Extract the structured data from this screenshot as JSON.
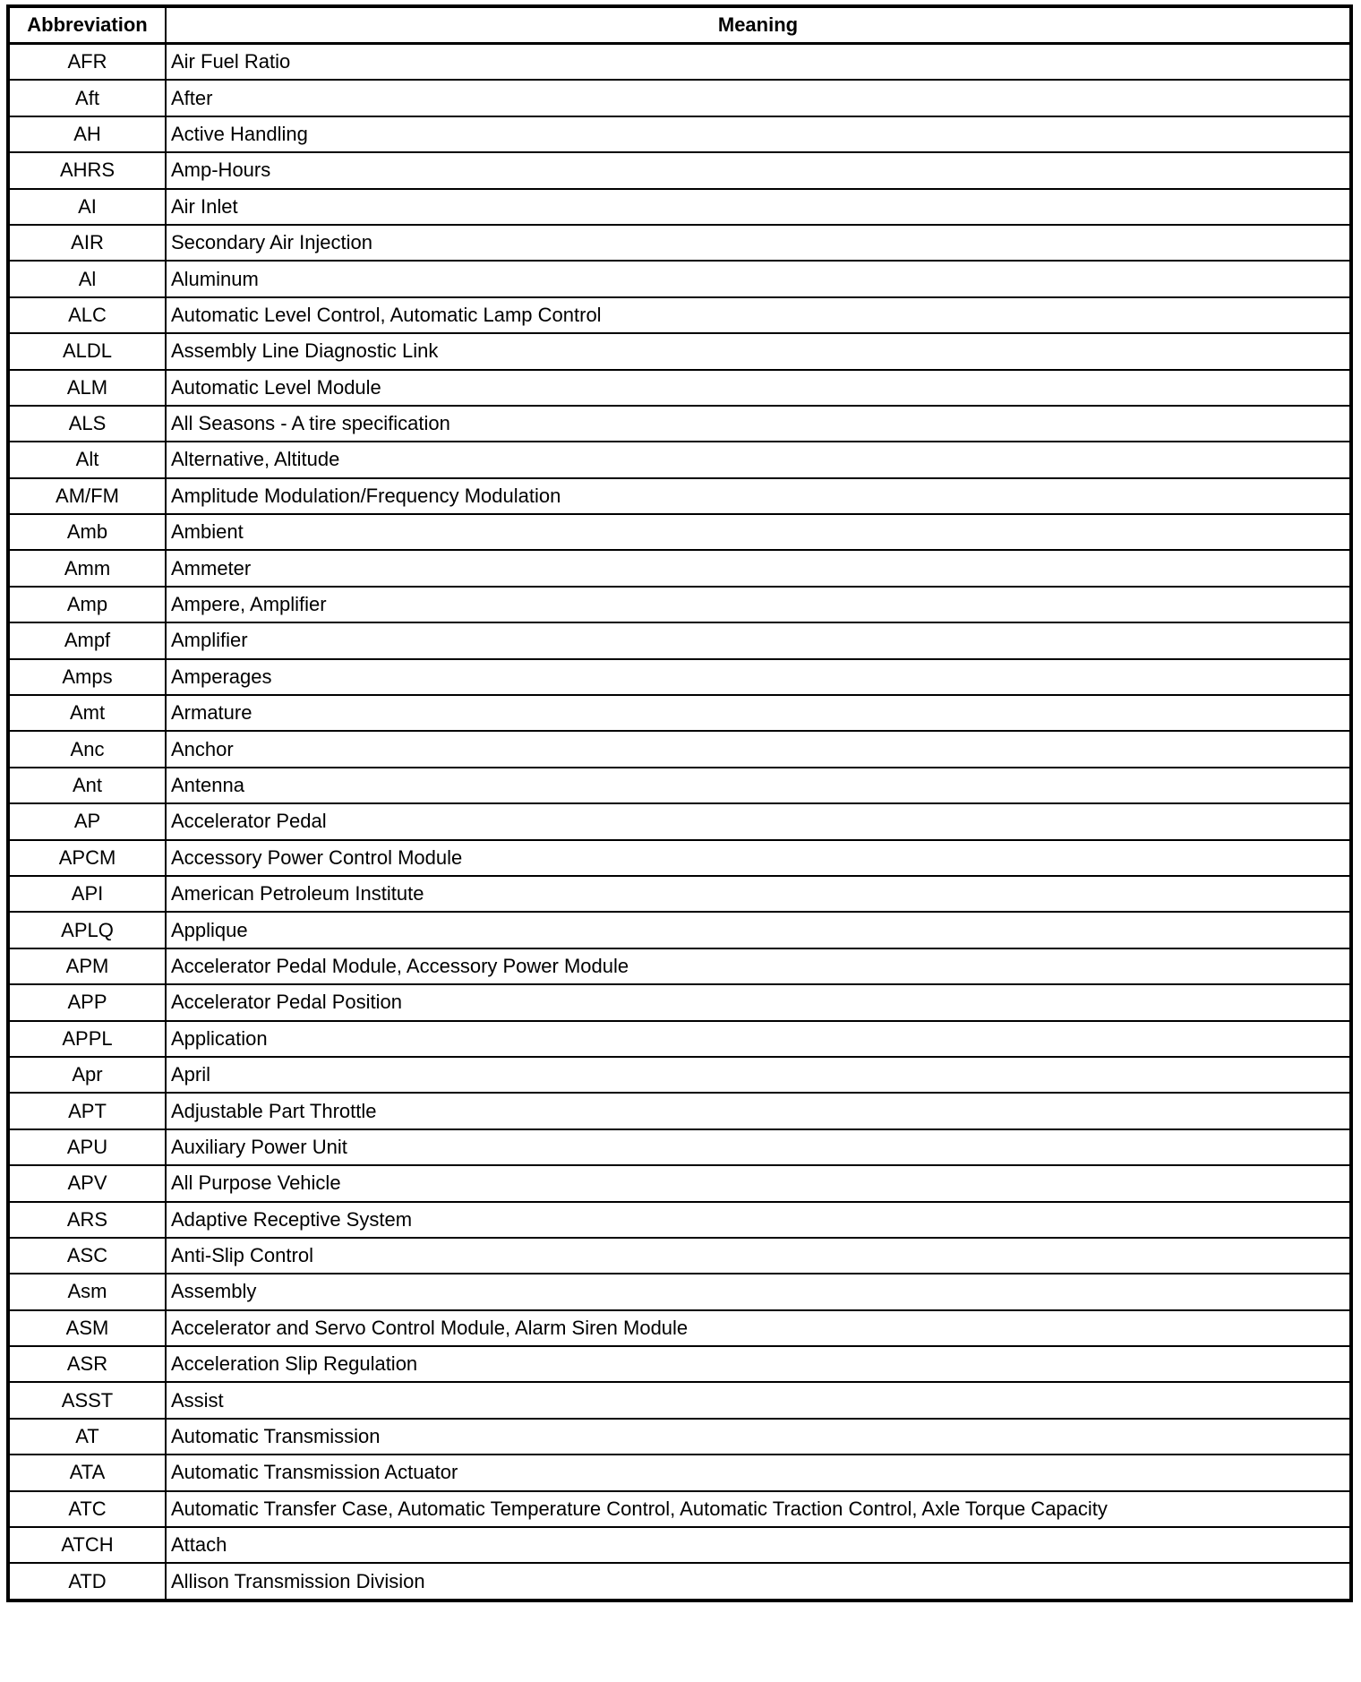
{
  "table": {
    "headers": [
      "Abbreviation",
      "Meaning"
    ],
    "rows": [
      [
        "AFR",
        "Air Fuel Ratio"
      ],
      [
        "Aft",
        "After"
      ],
      [
        "AH",
        "Active Handling"
      ],
      [
        "AHRS",
        "Amp-Hours"
      ],
      [
        "AI",
        "Air Inlet"
      ],
      [
        "AIR",
        "Secondary Air Injection"
      ],
      [
        "Al",
        "Aluminum"
      ],
      [
        "ALC",
        "Automatic Level Control, Automatic Lamp Control"
      ],
      [
        "ALDL",
        "Assembly Line Diagnostic Link"
      ],
      [
        "ALM",
        "Automatic Level Module"
      ],
      [
        "ALS",
        "All Seasons - A tire specification"
      ],
      [
        "Alt",
        "Alternative, Altitude"
      ],
      [
        "AM/FM",
        "Amplitude Modulation/Frequency Modulation"
      ],
      [
        "Amb",
        "Ambient"
      ],
      [
        "Amm",
        "Ammeter"
      ],
      [
        "Amp",
        "Ampere, Amplifier"
      ],
      [
        "Ampf",
        "Amplifier"
      ],
      [
        "Amps",
        "Amperages"
      ],
      [
        "Amt",
        "Armature"
      ],
      [
        "Anc",
        "Anchor"
      ],
      [
        "Ant",
        "Antenna"
      ],
      [
        "AP",
        "Accelerator Pedal"
      ],
      [
        "APCM",
        "Accessory Power Control Module"
      ],
      [
        "API",
        "American Petroleum Institute"
      ],
      [
        "APLQ",
        "Applique"
      ],
      [
        "APM",
        "Accelerator Pedal Module, Accessory Power Module"
      ],
      [
        "APP",
        "Accelerator Pedal Position"
      ],
      [
        "APPL",
        "Application"
      ],
      [
        "Apr",
        "April"
      ],
      [
        "APT",
        "Adjustable Part Throttle"
      ],
      [
        "APU",
        "Auxiliary Power Unit"
      ],
      [
        "APV",
        "All Purpose Vehicle"
      ],
      [
        "ARS",
        "Adaptive Receptive System"
      ],
      [
        "ASC",
        "Anti-Slip Control"
      ],
      [
        "Asm",
        "Assembly"
      ],
      [
        "ASM",
        "Accelerator and Servo Control Module, Alarm Siren Module"
      ],
      [
        "ASR",
        "Acceleration Slip Regulation"
      ],
      [
        "ASST",
        "Assist"
      ],
      [
        "AT",
        "Automatic Transmission"
      ],
      [
        "ATA",
        "Automatic Transmission Actuator"
      ],
      [
        "ATC",
        "Automatic Transfer Case, Automatic Temperature Control, Automatic Traction Control, Axle Torque Capacity"
      ],
      [
        "ATCH",
        "Attach"
      ],
      [
        "ATD",
        "Allison Transmission Division"
      ]
    ]
  }
}
